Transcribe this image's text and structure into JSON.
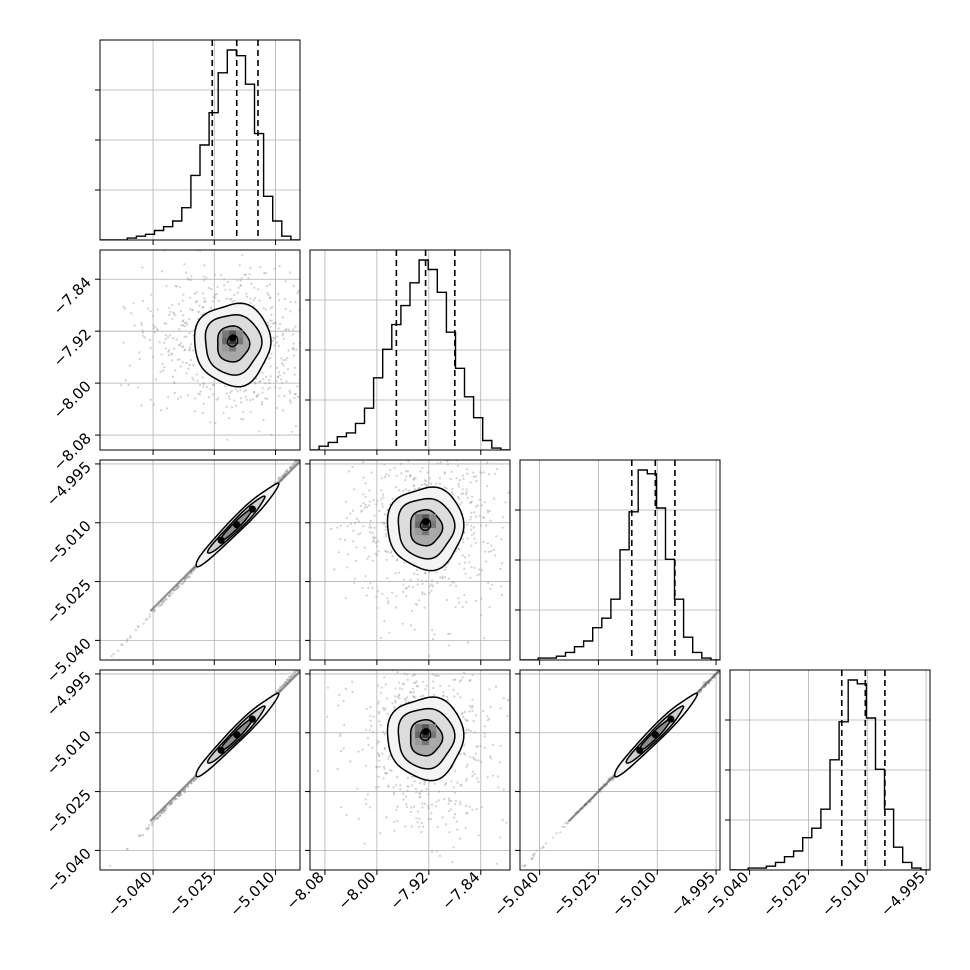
{
  "chart_data": {
    "type": "corner",
    "parameters": 4,
    "colors": {
      "line": "#000000",
      "grid": "#b0b0b0",
      "points": "#9a9a9a",
      "frame": "#000000"
    },
    "grid": true,
    "ranges": [
      [
        -5.053,
        -5.004
      ],
      [
        -8.103,
        -7.795
      ],
      [
        -5.045,
        -4.994
      ],
      [
        -5.045,
        -4.994
      ]
    ],
    "axis_ticks": {
      "bottom": [
        {
          "values": [
            -5.04,
            -5.025,
            -5.01
          ],
          "labels": [
            "−5.040",
            "−5.025",
            "−5.010"
          ]
        },
        {
          "values": [
            -8.08,
            -8.0,
            -7.92,
            -7.84
          ],
          "labels": [
            "−8.08",
            "−8.00",
            "−7.92",
            "−7.84"
          ]
        },
        {
          "values": [
            -5.04,
            -5.025,
            -5.01,
            -4.995
          ],
          "labels": [
            "−5.040",
            "−5.025",
            "−5.010",
            "−4.995"
          ]
        },
        {
          "values": [
            -5.04,
            -5.025,
            -5.01,
            -4.995
          ],
          "labels": [
            "−5.040",
            "−5.025",
            "−5.010",
            "−4.995"
          ]
        }
      ],
      "left": [
        null,
        {
          "values": [
            -7.84,
            -7.92,
            -8.0,
            -8.08
          ],
          "labels": [
            "−7.84",
            "−7.92",
            "−8.00",
            "−8.08"
          ]
        },
        {
          "values": [
            -4.995,
            -5.01,
            -5.025,
            -5.04
          ],
          "labels": [
            "−4.995",
            "−5.010",
            "−5.025",
            "−5.040"
          ]
        },
        {
          "values": [
            -4.995,
            -5.01,
            -5.025,
            -5.04
          ],
          "labels": [
            "−4.995",
            "−5.010",
            "−5.025",
            "−5.040"
          ]
        }
      ]
    },
    "histograms": [
      {
        "param": 0,
        "bin_start": -5.053,
        "bin_end": -5.004,
        "counts": [
          0,
          0,
          0,
          1,
          2,
          3,
          5,
          7,
          10,
          17,
          34,
          50,
          67,
          88,
          100,
          97,
          82,
          56,
          23,
          10,
          2,
          0
        ],
        "quantiles": [
          -5.0255,
          -5.0195,
          -5.0143
        ]
      },
      {
        "param": 1,
        "bin_start": -8.103,
        "bin_end": -7.795,
        "counts": [
          0,
          2,
          4,
          7,
          9,
          14,
          22,
          38,
          53,
          66,
          76,
          88,
          100,
          95,
          83,
          62,
          43,
          28,
          17,
          5,
          1,
          0
        ],
        "quantiles": [
          -7.97,
          -7.925,
          -7.88
        ]
      },
      {
        "param": 2,
        "bin_start": -5.045,
        "bin_end": -4.994,
        "counts": [
          0,
          0,
          1,
          1,
          2,
          4,
          7,
          10,
          17,
          22,
          32,
          58,
          78,
          100,
          98,
          80,
          53,
          32,
          12,
          4,
          1,
          0
        ],
        "quantiles": [
          -5.0165,
          -5.0105,
          -5.0055
        ]
      },
      {
        "param": 3,
        "bin_start": -5.045,
        "bin_end": -4.994,
        "counts": [
          0,
          0,
          1,
          1,
          2,
          4,
          7,
          10,
          17,
          22,
          32,
          58,
          78,
          100,
          98,
          80,
          53,
          32,
          12,
          4,
          1,
          0
        ],
        "quantiles": [
          -5.0165,
          -5.0105,
          -5.0055
        ]
      }
    ],
    "pairs": [
      {
        "x_param": 0,
        "y_param": 1,
        "shape": "round",
        "center": [
          -5.0205,
          -7.935
        ],
        "spread": [
          0.0085,
          0.048
        ],
        "rho": 0.05,
        "scatter_points": 700
      },
      {
        "x_param": 0,
        "y_param": 2,
        "shape": "linear",
        "center": [
          -5.0195,
          -5.0105
        ],
        "spread": [
          0.0085,
          0.0093
        ],
        "rho": 0.999,
        "scatter_points": 450
      },
      {
        "x_param": 1,
        "y_param": 2,
        "shape": "round",
        "center": [
          -7.925,
          -5.0105
        ],
        "spread": [
          0.048,
          0.0093
        ],
        "rho": 0.03,
        "scatter_points": 700
      },
      {
        "x_param": 0,
        "y_param": 3,
        "shape": "linear",
        "center": [
          -5.0195,
          -5.0105
        ],
        "spread": [
          0.0085,
          0.0093
        ],
        "rho": 0.999,
        "scatter_points": 450
      },
      {
        "x_param": 1,
        "y_param": 3,
        "shape": "round",
        "center": [
          -7.925,
          -5.0105
        ],
        "spread": [
          0.048,
          0.0093
        ],
        "rho": 0.03,
        "scatter_points": 700
      },
      {
        "x_param": 2,
        "y_param": 3,
        "shape": "linear",
        "center": [
          -5.0105,
          -5.0105
        ],
        "spread": [
          0.0093,
          0.0093
        ],
        "rho": 0.999,
        "scatter_points": 450
      }
    ]
  }
}
